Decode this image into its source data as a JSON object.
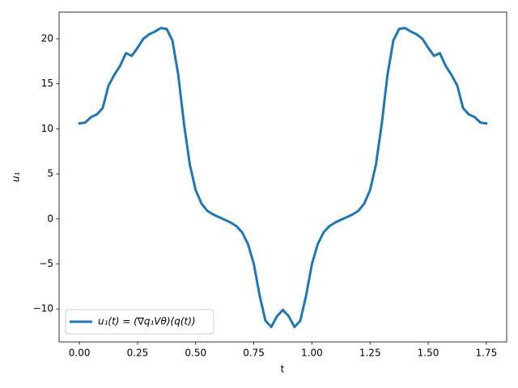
{
  "chart_data": {
    "type": "line",
    "xlabel": "t",
    "ylabel": "u₁",
    "x": [
      0,
      0.025,
      0.05,
      0.075,
      0.1,
      0.125,
      0.15,
      0.175,
      0.2,
      0.225,
      0.25,
      0.275,
      0.3,
      0.325,
      0.35,
      0.375,
      0.4,
      0.425,
      0.45,
      0.475,
      0.5,
      0.525,
      0.55,
      0.575,
      0.6,
      0.625,
      0.65,
      0.675,
      0.7,
      0.725,
      0.75,
      0.775,
      0.8,
      0.825,
      0.85,
      0.875,
      0.9,
      0.925,
      0.95,
      0.975,
      1,
      1.025,
      1.05,
      1.075,
      1.1,
      1.125,
      1.15,
      1.175,
      1.2,
      1.225,
      1.25,
      1.275,
      1.3,
      1.325,
      1.35,
      1.375,
      1.4,
      1.425,
      1.45,
      1.475,
      1.5,
      1.525,
      1.55,
      1.575,
      1.6,
      1.625,
      1.65,
      1.675,
      1.7,
      1.725,
      1.75
    ],
    "series": [
      {
        "name": "u₁(t) = (∇q₁Vθ)(q(t))",
        "color": "#1f77b4",
        "values": [
          10.6,
          10.7,
          11.3,
          11.6,
          12.3,
          14.8,
          16.0,
          17.0,
          18.4,
          18.1,
          19.0,
          20.0,
          20.5,
          20.8,
          21.2,
          21.1,
          19.8,
          16.0,
          10.5,
          6.0,
          3.2,
          1.7,
          0.9,
          0.5,
          0.2,
          -0.1,
          -0.4,
          -0.8,
          -1.5,
          -2.8,
          -5.0,
          -8.5,
          -11.3,
          -12.0,
          -10.8,
          -10.1,
          -10.8,
          -12.0,
          -11.3,
          -8.5,
          -5.0,
          -2.8,
          -1.5,
          -0.8,
          -0.4,
          -0.1,
          0.2,
          0.5,
          0.9,
          1.7,
          3.2,
          6.0,
          10.5,
          16.0,
          19.8,
          21.1,
          21.2,
          20.8,
          20.5,
          20.0,
          19.0,
          18.1,
          18.4,
          17.0,
          16.0,
          14.8,
          12.3,
          11.6,
          11.3,
          10.7,
          10.6
        ]
      }
    ],
    "xlim": [
      -0.0875,
      1.8375
    ],
    "xticks": [
      {
        "value": 0,
        "label": "0.00"
      },
      {
        "value": 0.25,
        "label": "0.25"
      },
      {
        "value": 0.5,
        "label": "0.50"
      },
      {
        "value": 0.75,
        "label": "0.75"
      },
      {
        "value": 1,
        "label": "1.00"
      },
      {
        "value": 1.25,
        "label": "1.25"
      },
      {
        "value": 1.5,
        "label": "1.50"
      },
      {
        "value": 1.75,
        "label": "1.75"
      }
    ],
    "ylim": [
      -13.66,
      22.96
    ],
    "yticks": [
      {
        "value": -10,
        "label": "−10"
      },
      {
        "value": -5,
        "label": "−5"
      },
      0,
      5,
      10,
      15,
      20
    ],
    "legend": "lower left"
  }
}
